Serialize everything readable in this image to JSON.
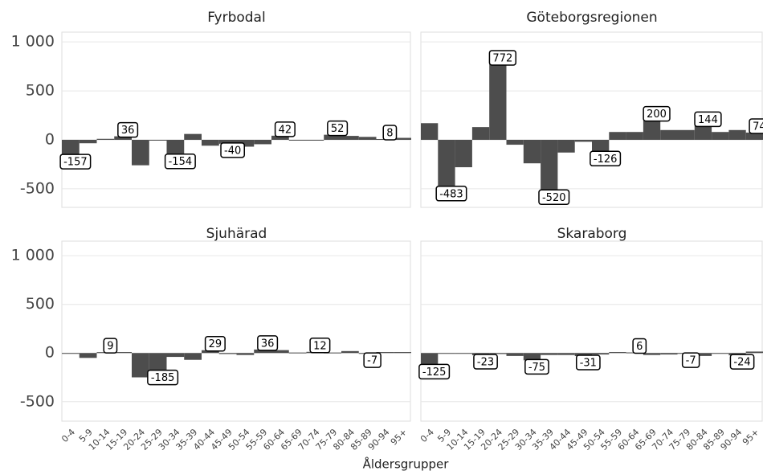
{
  "axis_title": "Åldersgrupper",
  "chart_data": [
    {
      "type": "bar",
      "title": "Fyrbodal",
      "color": "#4d4d4d",
      "categories": [
        "0-4",
        "5-9",
        "10-14",
        "15-19",
        "20-24",
        "25-29",
        "30-34",
        "35-39",
        "40-44",
        "45-49",
        "50-54",
        "55-59",
        "60-64",
        "65-69",
        "70-74",
        "75-79",
        "80-84",
        "85-89",
        "90-94",
        "95+"
      ],
      "values": [
        -157,
        -35,
        10,
        36,
        -260,
        -5,
        -154,
        60,
        -60,
        -40,
        -70,
        -45,
        42,
        0,
        0,
        52,
        40,
        30,
        8,
        20
      ],
      "labeled": [
        0,
        3,
        6,
        9,
        12,
        15,
        18
      ],
      "ylim": [
        -690,
        1100
      ],
      "yticks": [
        -500,
        0,
        500,
        {
          "value": 1000,
          "label": "1 000"
        }
      ],
      "grid": true
    },
    {
      "type": "bar",
      "title": "Göteborgsregionen",
      "color": "#4d4d4d",
      "categories": [
        "0-4",
        "5-9",
        "10-14",
        "15-19",
        "20-24",
        "25-29",
        "30-34",
        "35-39",
        "40-44",
        "45-49",
        "50-54",
        "55-59",
        "60-64",
        "65-69",
        "70-74",
        "75-79",
        "80-84",
        "85-89",
        "90-94",
        "95+"
      ],
      "values": [
        170,
        -483,
        -280,
        130,
        772,
        -50,
        -240,
        -520,
        -130,
        -20,
        -126,
        80,
        80,
        200,
        100,
        100,
        144,
        80,
        100,
        74
      ],
      "labeled": [
        1,
        4,
        7,
        10,
        13,
        16,
        19
      ],
      "ylim": [
        -690,
        1100
      ],
      "yticks": [
        -500,
        0,
        500,
        {
          "value": 1000,
          "label": "1 000"
        }
      ],
      "grid": true
    },
    {
      "type": "bar",
      "title": "Sjuhärad",
      "color": "#4d4d4d",
      "categories": [
        "0-4",
        "5-9",
        "10-14",
        "15-19",
        "20-24",
        "25-29",
        "30-34",
        "35-39",
        "40-44",
        "45-49",
        "50-54",
        "55-59",
        "60-64",
        "65-69",
        "70-74",
        "75-79",
        "80-84",
        "85-89",
        "90-94",
        "95+"
      ],
      "values": [
        -5,
        -50,
        9,
        10,
        -250,
        -185,
        -40,
        -70,
        29,
        -10,
        -20,
        36,
        30,
        5,
        12,
        5,
        20,
        -7,
        10,
        10
      ],
      "labeled": [
        2,
        5,
        8,
        11,
        14,
        17
      ],
      "ylim": [
        -700,
        1150
      ],
      "yticks": [
        -500,
        0,
        500,
        {
          "value": 1000,
          "label": "1 000"
        }
      ],
      "grid": true
    },
    {
      "type": "bar",
      "title": "Skaraborg",
      "color": "#4d4d4d",
      "categories": [
        "0-4",
        "5-9",
        "10-14",
        "15-19",
        "20-24",
        "25-29",
        "30-34",
        "35-39",
        "40-44",
        "45-49",
        "50-54",
        "55-59",
        "60-64",
        "65-69",
        "70-74",
        "75-79",
        "80-84",
        "85-89",
        "90-94",
        "95+"
      ],
      "values": [
        -125,
        -5,
        -5,
        -23,
        -10,
        -30,
        -75,
        -20,
        -20,
        -31,
        -15,
        10,
        6,
        -20,
        -15,
        -7,
        -30,
        0,
        -24,
        15
      ],
      "labeled": [
        0,
        3,
        6,
        9,
        12,
        15,
        18
      ],
      "ylim": [
        -700,
        1150
      ],
      "yticks": [
        -500,
        0,
        500,
        {
          "value": 1000,
          "label": "1 000"
        }
      ],
      "grid": true
    }
  ]
}
